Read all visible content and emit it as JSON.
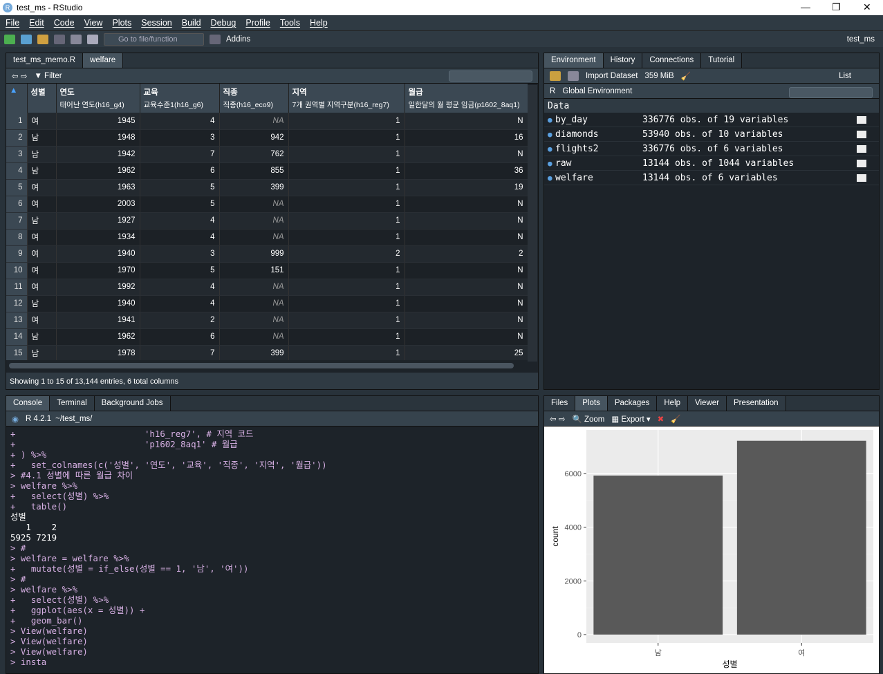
{
  "window": {
    "title": "test_ms - RStudio"
  },
  "menu": [
    "File",
    "Edit",
    "Code",
    "View",
    "Plots",
    "Session",
    "Build",
    "Debug",
    "Profile",
    "Tools",
    "Help"
  ],
  "toolbar": {
    "goto_placeholder": "Go to file/function",
    "addins": "Addins",
    "project": "test_ms"
  },
  "source": {
    "tabs": [
      "test_ms_memo.R",
      "welfare"
    ],
    "filter": "Filter",
    "columns": [
      {
        "name": "성별",
        "label": ""
      },
      {
        "name": "연도",
        "label": "태어난 연도(h16_g4)"
      },
      {
        "name": "교육",
        "label": "교육수준1(h16_g6)"
      },
      {
        "name": "직종",
        "label": "직종(h16_eco9)"
      },
      {
        "name": "지역",
        "label": "7개 권역별 지역구분(h16_reg7)"
      },
      {
        "name": "월급",
        "label": "일한달의 월 평균 임금(p1602_8aq1)"
      }
    ],
    "rows": [
      [
        "1",
        "여",
        "1945",
        "4",
        "NA",
        "1",
        "N"
      ],
      [
        "2",
        "남",
        "1948",
        "3",
        "942",
        "1",
        "16"
      ],
      [
        "3",
        "남",
        "1942",
        "7",
        "762",
        "1",
        "N"
      ],
      [
        "4",
        "남",
        "1962",
        "6",
        "855",
        "1",
        "36"
      ],
      [
        "5",
        "여",
        "1963",
        "5",
        "399",
        "1",
        "19"
      ],
      [
        "6",
        "여",
        "2003",
        "5",
        "NA",
        "1",
        "N"
      ],
      [
        "7",
        "남",
        "1927",
        "4",
        "NA",
        "1",
        "N"
      ],
      [
        "8",
        "여",
        "1934",
        "4",
        "NA",
        "1",
        "N"
      ],
      [
        "9",
        "여",
        "1940",
        "3",
        "999",
        "2",
        "2"
      ],
      [
        "10",
        "여",
        "1970",
        "5",
        "151",
        "1",
        "N"
      ],
      [
        "11",
        "여",
        "1992",
        "4",
        "NA",
        "1",
        "N"
      ],
      [
        "12",
        "남",
        "1940",
        "4",
        "NA",
        "1",
        "N"
      ],
      [
        "13",
        "여",
        "1941",
        "2",
        "NA",
        "1",
        "N"
      ],
      [
        "14",
        "남",
        "1962",
        "6",
        "NA",
        "1",
        "N"
      ],
      [
        "15",
        "남",
        "1978",
        "7",
        "399",
        "1",
        "25"
      ]
    ],
    "status": "Showing 1 to 15 of 13,144 entries, 6 total columns"
  },
  "environment": {
    "tabs": [
      "Environment",
      "History",
      "Connections",
      "Tutorial"
    ],
    "import": "Import Dataset",
    "memory": "359 MiB",
    "view": "List",
    "lang": "R",
    "scope": "Global Environment",
    "section": "Data",
    "items": [
      {
        "name": "by_day",
        "value": "336776 obs. of 19 variables"
      },
      {
        "name": "diamonds",
        "value": "53940 obs. of 10 variables"
      },
      {
        "name": "flights2",
        "value": "336776 obs. of 6 variables"
      },
      {
        "name": "raw",
        "value": "13144 obs. of 1044 variables"
      },
      {
        "name": "welfare",
        "value": "13144 obs. of 6 variables"
      }
    ]
  },
  "console": {
    "tabs": [
      "Console",
      "Terminal",
      "Background Jobs"
    ],
    "version": "R 4.2.1",
    "path": "~/test_ms/",
    "lines": [
      {
        "t": "in",
        "s": "+                         'h16_reg7', # 지역 코드"
      },
      {
        "t": "in",
        "s": "+                         'p1602_8aq1' # 월급"
      },
      {
        "t": "in",
        "s": "+ ) %>%"
      },
      {
        "t": "in",
        "s": "+   set_colnames(c('성별', '연도', '교육', '직종', '지역', '월급'))"
      },
      {
        "t": "in",
        "s": "> #4.1 성별에 따른 월급 차이"
      },
      {
        "t": "in",
        "s": "> welfare %>%"
      },
      {
        "t": "in",
        "s": "+   select(성별) %>%"
      },
      {
        "t": "in",
        "s": "+   table()"
      },
      {
        "t": "out",
        "s": "성별"
      },
      {
        "t": "out",
        "s": "   1    2 "
      },
      {
        "t": "out",
        "s": "5925 7219 "
      },
      {
        "t": "in",
        "s": "> #"
      },
      {
        "t": "in",
        "s": "> welfare = welfare %>%"
      },
      {
        "t": "in",
        "s": "+   mutate(성별 = if_else(성별 == 1, '남', '여'))"
      },
      {
        "t": "in",
        "s": "> #"
      },
      {
        "t": "in",
        "s": "> welfare %>%"
      },
      {
        "t": "in",
        "s": "+   select(성별) %>%"
      },
      {
        "t": "in",
        "s": "+   ggplot(aes(x = 성별)) +"
      },
      {
        "t": "in",
        "s": "+   geom_bar()"
      },
      {
        "t": "in",
        "s": "> View(welfare)"
      },
      {
        "t": "in",
        "s": "> View(welfare)"
      },
      {
        "t": "in",
        "s": "> View(welfare)"
      },
      {
        "t": "in",
        "s": "> insta"
      }
    ]
  },
  "files": {
    "tabs": [
      "Files",
      "Plots",
      "Packages",
      "Help",
      "Viewer",
      "Presentation"
    ],
    "zoom": "Zoom",
    "export": "Export"
  },
  "chart_data": {
    "type": "bar",
    "categories": [
      "남",
      "여"
    ],
    "values": [
      5925,
      7219
    ],
    "xlabel": "성별",
    "ylabel": "count",
    "yticks": [
      0,
      2000,
      4000,
      6000
    ],
    "ylim": [
      0,
      7580
    ],
    "bar_color": "#595959",
    "panel_color": "#ebebeb",
    "grid": true
  }
}
